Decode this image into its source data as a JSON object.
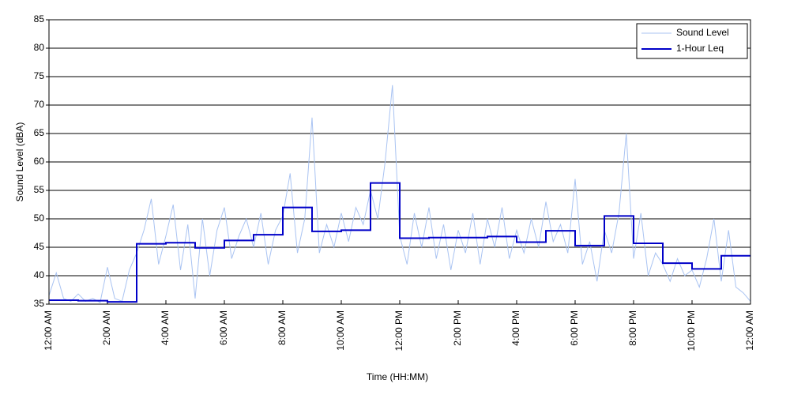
{
  "chart_data": {
    "type": "line",
    "xlabel": "Time (HH:MM)",
    "ylabel": "Sound Level (dBA)",
    "xlim": [
      0,
      24
    ],
    "xticks": [
      {
        "value": 0,
        "label": "12:00 AM"
      },
      {
        "value": 2,
        "label": "2:00 AM"
      },
      {
        "value": 4,
        "label": "4:00 AM"
      },
      {
        "value": 6,
        "label": "6:00 AM"
      },
      {
        "value": 8,
        "label": "8:00 AM"
      },
      {
        "value": 10,
        "label": "10:00 AM"
      },
      {
        "value": 12,
        "label": "12:00 PM"
      },
      {
        "value": 14,
        "label": "2:00 PM"
      },
      {
        "value": 16,
        "label": "4:00 PM"
      },
      {
        "value": 18,
        "label": "6:00 PM"
      },
      {
        "value": 20,
        "label": "8:00 PM"
      },
      {
        "value": 22,
        "label": "10:00 PM"
      },
      {
        "value": 24,
        "label": "12:00 AM"
      }
    ],
    "ylim": [
      35,
      85
    ],
    "yticks": [
      35,
      40,
      45,
      50,
      55,
      60,
      65,
      70,
      75,
      80,
      85
    ],
    "grid": true,
    "legend": "upper right",
    "series": [
      {
        "name": "Sound Level",
        "color": "#a9c3f2",
        "style": "line",
        "x": [
          0,
          0.25,
          0.5,
          0.75,
          1,
          1.25,
          1.5,
          1.75,
          2,
          2.25,
          2.5,
          2.75,
          3,
          3.25,
          3.5,
          3.75,
          4,
          4.25,
          4.5,
          4.75,
          5,
          5.25,
          5.5,
          5.75,
          6,
          6.25,
          6.5,
          6.75,
          7,
          7.25,
          7.5,
          7.75,
          8,
          8.25,
          8.5,
          8.75,
          9,
          9.25,
          9.5,
          9.75,
          10,
          10.25,
          10.5,
          10.75,
          11,
          11.25,
          11.5,
          11.75,
          12,
          12.25,
          12.5,
          12.75,
          13,
          13.25,
          13.5,
          13.75,
          14,
          14.25,
          14.5,
          14.75,
          15,
          15.25,
          15.5,
          15.75,
          16,
          16.25,
          16.5,
          16.75,
          17,
          17.25,
          17.5,
          17.75,
          18,
          18.25,
          18.5,
          18.75,
          19,
          19.25,
          19.5,
          19.75,
          20,
          20.25,
          20.5,
          20.75,
          21,
          21.25,
          21.5,
          21.75,
          22,
          22.25,
          22.5,
          22.75,
          23,
          23.25,
          23.5,
          23.75,
          24
        ],
        "values": [
          36.5,
          40.5,
          36,
          35.5,
          36.8,
          35.5,
          36,
          35.3,
          41.5,
          36,
          35.5,
          41,
          44,
          48,
          53.5,
          42,
          47,
          52.5,
          41,
          49,
          36,
          50,
          40,
          48,
          52,
          43,
          47,
          50,
          45,
          51,
          42,
          48,
          50.5,
          58,
          44,
          50,
          67.8,
          44,
          49,
          45,
          51,
          46,
          52,
          49,
          55,
          50,
          60,
          73.5,
          47,
          42,
          51,
          45,
          52,
          43,
          49,
          41,
          48,
          44,
          51,
          42,
          50,
          45,
          52,
          43,
          48,
          44,
          50,
          45,
          53,
          46,
          49,
          44,
          57,
          42,
          46,
          39,
          48,
          44,
          51,
          65,
          43,
          51,
          40,
          44,
          42,
          39,
          43,
          40,
          41,
          38,
          43,
          50,
          39,
          48,
          38,
          37,
          35.5
        ]
      },
      {
        "name": "1-Hour Leq",
        "color": "#0000c8",
        "style": "step",
        "x": [
          0,
          1,
          2,
          3,
          4,
          5,
          6,
          7,
          8,
          9,
          10,
          11,
          12,
          13,
          14,
          15,
          16,
          17,
          18,
          19,
          20,
          21,
          22,
          23
        ],
        "values": [
          35.7,
          35.6,
          35.4,
          45.6,
          45.8,
          44.9,
          46.2,
          47.2,
          52.0,
          47.8,
          48.0,
          56.3,
          46.6,
          46.7,
          46.7,
          46.9,
          45.9,
          47.9,
          45.3,
          50.5,
          45.7,
          42.2,
          41.2,
          43.5
        ]
      }
    ]
  }
}
